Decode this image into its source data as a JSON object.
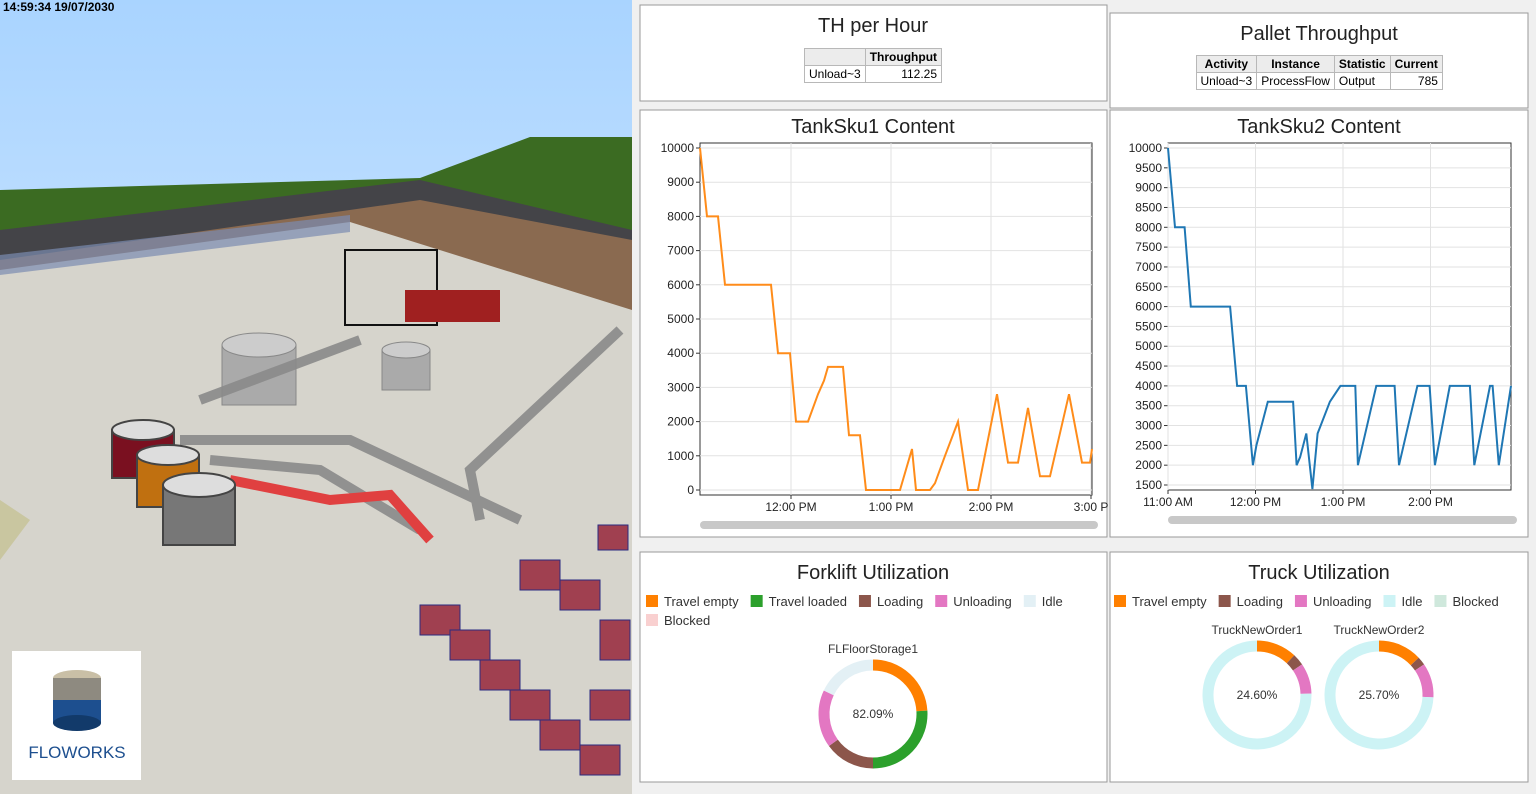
{
  "timestamp": "14:59:34  19/07/2030",
  "logo": "FLOWORKS",
  "tables": [
    {
      "title": "TH per Hour",
      "columns": [
        "Throughput"
      ],
      "rows": [
        {
          "label": "Unload~3",
          "cells": [
            112.25
          ]
        }
      ]
    },
    {
      "title": "Pallet Throughput",
      "columns": [
        "Activity",
        "Instance",
        "Statistic",
        "Current"
      ],
      "rows": [
        {
          "cells": [
            "Unload~3",
            "ProcessFlow",
            "Output",
            785
          ]
        }
      ]
    }
  ],
  "chart_data": [
    {
      "type": "line",
      "title": "TankSku1 Content",
      "x": [
        11.09,
        11.16,
        11.27,
        11.34,
        11.8,
        11.87,
        11.99,
        12.05,
        12.17,
        12.27,
        12.33,
        12.37,
        12.52,
        12.58,
        12.69,
        12.75,
        13.09,
        13.21,
        13.25,
        13.39,
        13.44,
        13.54,
        13.67,
        13.77,
        13.87,
        14.06,
        14.17,
        14.27,
        14.37,
        14.49,
        14.59,
        14.78,
        14.91,
        14.99,
        15.01
      ],
      "series": [
        {
          "color": "#ff8c1a",
          "values": [
            10000,
            8000,
            8000,
            6000,
            6000,
            4000,
            4000,
            2000,
            2000,
            2800,
            3200,
            3600,
            3600,
            1600,
            1600,
            0,
            0,
            1200,
            0,
            0,
            200,
            1000,
            2000,
            0,
            0,
            2800,
            800,
            800,
            2400,
            400,
            400,
            2800,
            800,
            800,
            1200
          ]
        }
      ],
      "xlim": [
        11.09,
        15.01
      ],
      "xticks": [
        {
          "value": 12,
          "label": "12:00 PM"
        },
        {
          "value": 13,
          "label": "1:00 PM"
        },
        {
          "value": 14,
          "label": "2:00 PM"
        },
        {
          "value": 15,
          "label": "3:00 P"
        }
      ],
      "ylim": [
        0,
        10000
      ],
      "yticks": [
        0,
        1000,
        2000,
        3000,
        4000,
        5000,
        6000,
        7000,
        8000,
        9000,
        10000
      ],
      "grid": true
    },
    {
      "type": "line",
      "title": "TankSku2 Content",
      "x": [
        11.0,
        11.08,
        11.19,
        11.26,
        11.71,
        11.79,
        11.89,
        11.97,
        12.01,
        12.07,
        12.14,
        12.43,
        12.47,
        12.51,
        12.58,
        12.65,
        12.71,
        12.85,
        12.97,
        13.14,
        13.17,
        13.38,
        13.59,
        13.64,
        13.85,
        13.99,
        14.05,
        14.22,
        14.45,
        14.5,
        14.68,
        14.71,
        14.78,
        14.92
      ],
      "series": [
        {
          "color": "#1f77b4",
          "values": [
            10000,
            8000,
            8000,
            6000,
            6000,
            4000,
            4000,
            2000,
            2500,
            3000,
            3600,
            3600,
            2000,
            2200,
            2800,
            1400,
            2800,
            3600,
            4000,
            4000,
            2000,
            4000,
            4000,
            2000,
            4000,
            4000,
            2000,
            4000,
            4000,
            2000,
            4000,
            4000,
            2000,
            4000
          ]
        }
      ],
      "xlim": [
        11.0,
        14.92
      ],
      "xticks": [
        {
          "value": 11,
          "label": "11:00 AM"
        },
        {
          "value": 12,
          "label": "12:00 PM"
        },
        {
          "value": 13,
          "label": "1:00 PM"
        },
        {
          "value": 14,
          "label": "2:00 PM"
        }
      ],
      "ylim": [
        1500,
        10000
      ],
      "yticks": [
        1500,
        2000,
        2500,
        3000,
        3500,
        4000,
        4500,
        5000,
        5500,
        6000,
        6500,
        7000,
        7500,
        8000,
        8500,
        9000,
        9500,
        10000
      ],
      "grid": true
    },
    {
      "type": "donut",
      "title": "Forklift Utilization",
      "categories": [
        "Travel empty",
        "Travel loaded",
        "Loading",
        "Unloading",
        "Idle",
        "Blocked"
      ],
      "colors": [
        "#ff8000",
        "#2ca02c",
        "#8c564b",
        "#e377c2",
        "#e3f0f5",
        "#f9d0d0"
      ],
      "rings": [
        {
          "name": "FLFloorStorage1",
          "center_label": "82.09%",
          "values": [
            24,
            26,
            15,
            17.09,
            17.91,
            0
          ]
        }
      ]
    },
    {
      "type": "donut",
      "title": "Truck Utilization",
      "categories": [
        "Travel empty",
        "Loading",
        "Unloading",
        "Idle",
        "Blocked"
      ],
      "colors": [
        "#ff8000",
        "#8c564b",
        "#e377c2",
        "#cdf3f5",
        "#cfe8dc"
      ],
      "rings": [
        {
          "name": "TruckNewOrder1",
          "center_label": "24.60%",
          "values": [
            12,
            3.5,
            9.1,
            75.4,
            0
          ]
        },
        {
          "name": "TruckNewOrder2",
          "center_label": "25.70%",
          "values": [
            13,
            2.5,
            10.2,
            74.3,
            0
          ]
        }
      ]
    }
  ]
}
